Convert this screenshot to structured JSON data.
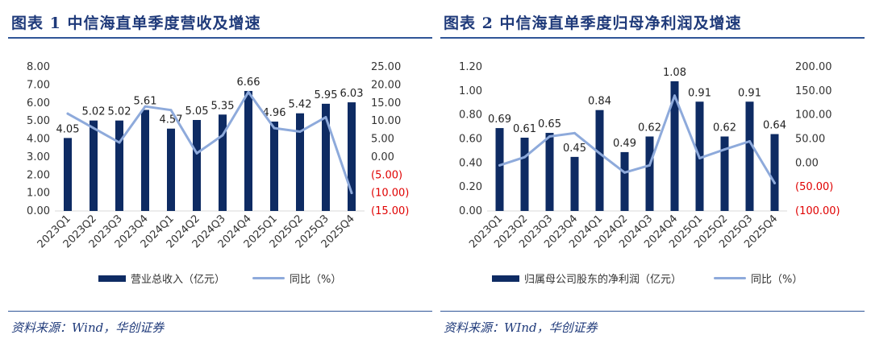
{
  "colors": {
    "bar": "#0e2b63",
    "line": "#8eaadb",
    "negative": "#e00000",
    "title": "#1f3a7a",
    "rule": "#2f5597"
  },
  "figures": [
    {
      "title": "图表 1   中信海直单季度营收及增速",
      "source": "资料来源：Wind，华创证券",
      "legend_bar": "营业总收入（亿元）",
      "legend_line": "同比（%）",
      "chart_data": {
        "type": "bar+line",
        "categories": [
          "2023Q1",
          "2023Q2",
          "2023Q3",
          "2023Q4",
          "2024Q1",
          "2024Q2",
          "2024Q3",
          "2024Q4",
          "2025Q1",
          "2025Q2",
          "2025Q3",
          "2025Q4"
        ],
        "series": [
          {
            "name": "营业总收入（亿元）",
            "type": "bar",
            "axis": "left",
            "values": [
              4.05,
              5.02,
              5.02,
              5.61,
              4.57,
              5.05,
              5.35,
              6.66,
              4.96,
              5.42,
              5.95,
              6.03
            ],
            "labels": [
              "4.05",
              "5.02",
              "5.02",
              "5.61",
              "4.57",
              "5.05",
              "5.35",
              "6.66",
              "4.96",
              "5.42",
              "5.95",
              "6.03"
            ]
          },
          {
            "name": "同比（%）",
            "type": "line",
            "axis": "right",
            "values": [
              12,
              8,
              4,
              14,
              13,
              1,
              6,
              18,
              8,
              7,
              11,
              -10
            ]
          }
        ],
        "left_axis": {
          "min": 0,
          "max": 8,
          "step": 1,
          "ticks": [
            "0.00",
            "1.00",
            "2.00",
            "3.00",
            "4.00",
            "5.00",
            "6.00",
            "7.00",
            "8.00"
          ]
        },
        "right_axis": {
          "min": -15,
          "max": 25,
          "step": 5,
          "ticks": [
            "(15.00)",
            "(10.00)",
            "(5.00)",
            "0.00",
            "5.00",
            "10.00",
            "15.00",
            "20.00",
            "25.00"
          ]
        }
      }
    },
    {
      "title": "图表 2   中信海直单季度归母净利润及增速",
      "source": "资料来源：WInd，华创证券",
      "legend_bar": "归属母公司股东的净利润（亿元）",
      "legend_line": "同比（%）",
      "chart_data": {
        "type": "bar+line",
        "categories": [
          "2023Q1",
          "2023Q2",
          "2023Q3",
          "2023Q4",
          "2024Q1",
          "2024Q2",
          "2024Q3",
          "2024Q4",
          "2025Q1",
          "2025Q2",
          "2025Q3",
          "2025Q4"
        ],
        "series": [
          {
            "name": "归属母公司股东的净利润（亿元）",
            "type": "bar",
            "axis": "left",
            "values": [
              0.69,
              0.61,
              0.65,
              0.45,
              0.84,
              0.49,
              0.62,
              1.08,
              0.91,
              0.62,
              0.91,
              0.64
            ],
            "labels": [
              "0.69",
              "0.61",
              "0.65",
              "0.45",
              "0.84",
              "0.49",
              "0.62",
              "1.08",
              "0.91",
              "0.62",
              "0.91",
              "0.64"
            ]
          },
          {
            "name": "同比（%）",
            "type": "line",
            "axis": "right",
            "values": [
              -5,
              12,
              55,
              62,
              20,
              -20,
              -5,
              140,
              10,
              28,
              45,
              -42
            ]
          }
        ],
        "left_axis": {
          "min": 0,
          "max": 1.2,
          "step": 0.2,
          "ticks": [
            "0.00",
            "0.20",
            "0.40",
            "0.60",
            "0.80",
            "1.00",
            "1.20"
          ]
        },
        "right_axis": {
          "min": -100,
          "max": 200,
          "step": 50,
          "ticks": [
            "(100.00)",
            "(50.00)",
            "0.00",
            "50.00",
            "100.00",
            "150.00",
            "200.00"
          ]
        }
      }
    }
  ]
}
